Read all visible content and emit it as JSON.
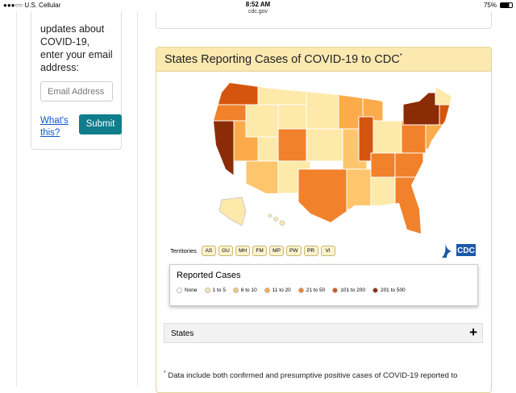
{
  "status": {
    "carrier": "U.S. Cellular",
    "time": "8:52 AM",
    "url": "cdc.gov",
    "battery": "75%"
  },
  "sidebar": {
    "text": "updates about COVID-19, enter your email address:",
    "placeholder": "Email Address",
    "link": "What's this?",
    "button": "Submit"
  },
  "panel": {
    "title": "States Reporting Cases of COVID-19 to CDC",
    "title_mark": "*",
    "logo": "CDC",
    "territories": {
      "label": "Territories",
      "items": [
        "AS",
        "GU",
        "MH",
        "FM",
        "MP",
        "PW",
        "PR",
        "VI"
      ]
    },
    "legend": {
      "title": "Reported Cases",
      "items": [
        {
          "label": "None",
          "color": "#ffffff"
        },
        {
          "label": "1 to 5",
          "color": "#fde9a9"
        },
        {
          "label": "6 to 10",
          "color": "#fdc66c"
        },
        {
          "label": "11 to 20",
          "color": "#fbab4a"
        },
        {
          "label": "21 to 50",
          "color": "#f1812a"
        },
        {
          "label": "101 to 200",
          "color": "#d5550f"
        },
        {
          "label": "201 to 500",
          "color": "#8b2c07"
        }
      ]
    },
    "accordion": {
      "label": "States",
      "icon": "+"
    },
    "footnote": {
      "mark": "*",
      "text": "Data include both confirmed and presumptive positive cases of COVID-19 reported to"
    }
  }
}
